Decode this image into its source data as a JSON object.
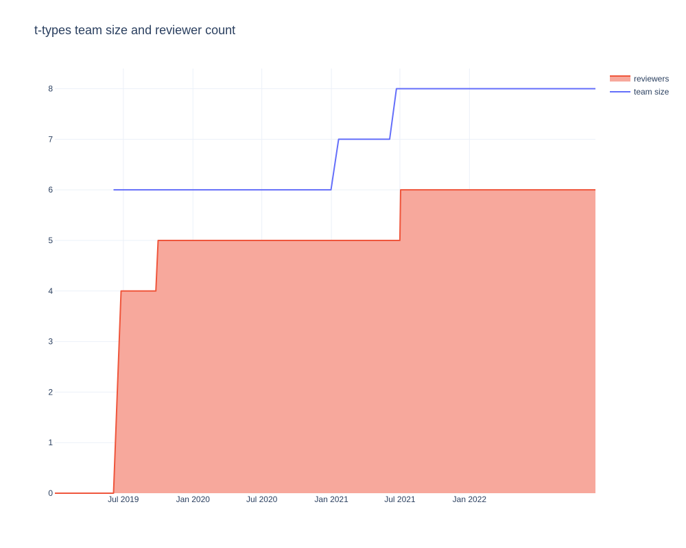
{
  "chart_data": {
    "type": "area",
    "title": "t-types team size and reviewer count",
    "xlabel": "",
    "ylabel": "",
    "x_axis_type": "date",
    "xlim": [
      "2019-01-01",
      "2022-11-30"
    ],
    "ylim": [
      0,
      8.4
    ],
    "grid": true,
    "legend_position": "top-right",
    "x_ticks": [
      {
        "date": "2019-07-01",
        "label": "Jul 2019"
      },
      {
        "date": "2020-01-01",
        "label": "Jan 2020"
      },
      {
        "date": "2020-07-01",
        "label": "Jul 2020"
      },
      {
        "date": "2021-01-01",
        "label": "Jan 2021"
      },
      {
        "date": "2021-07-01",
        "label": "Jul 2021"
      },
      {
        "date": "2022-01-01",
        "label": "Jan 2022"
      }
    ],
    "y_ticks": [
      0,
      1,
      2,
      3,
      4,
      5,
      6,
      7,
      8
    ],
    "series": [
      {
        "name": "reviewers",
        "kind": "area",
        "line_color": "#ef553b",
        "fill_color": "#f7a89c",
        "points": [
          {
            "x": "2019-01-01",
            "y": 0
          },
          {
            "x": "2019-06-05",
            "y": 0
          },
          {
            "x": "2019-06-25",
            "y": 4
          },
          {
            "x": "2019-09-25",
            "y": 4
          },
          {
            "x": "2019-10-01",
            "y": 5
          },
          {
            "x": "2021-07-01",
            "y": 5
          },
          {
            "x": "2021-07-03",
            "y": 6
          },
          {
            "x": "2022-11-30",
            "y": 6
          }
        ]
      },
      {
        "name": "team size",
        "kind": "line",
        "line_color": "#636efa",
        "points": [
          {
            "x": "2019-06-05",
            "y": 6
          },
          {
            "x": "2020-12-31",
            "y": 6
          },
          {
            "x": "2021-01-20",
            "y": 7
          },
          {
            "x": "2021-06-04",
            "y": 7
          },
          {
            "x": "2021-06-22",
            "y": 8
          },
          {
            "x": "2022-11-30",
            "y": 8
          }
        ]
      }
    ]
  }
}
